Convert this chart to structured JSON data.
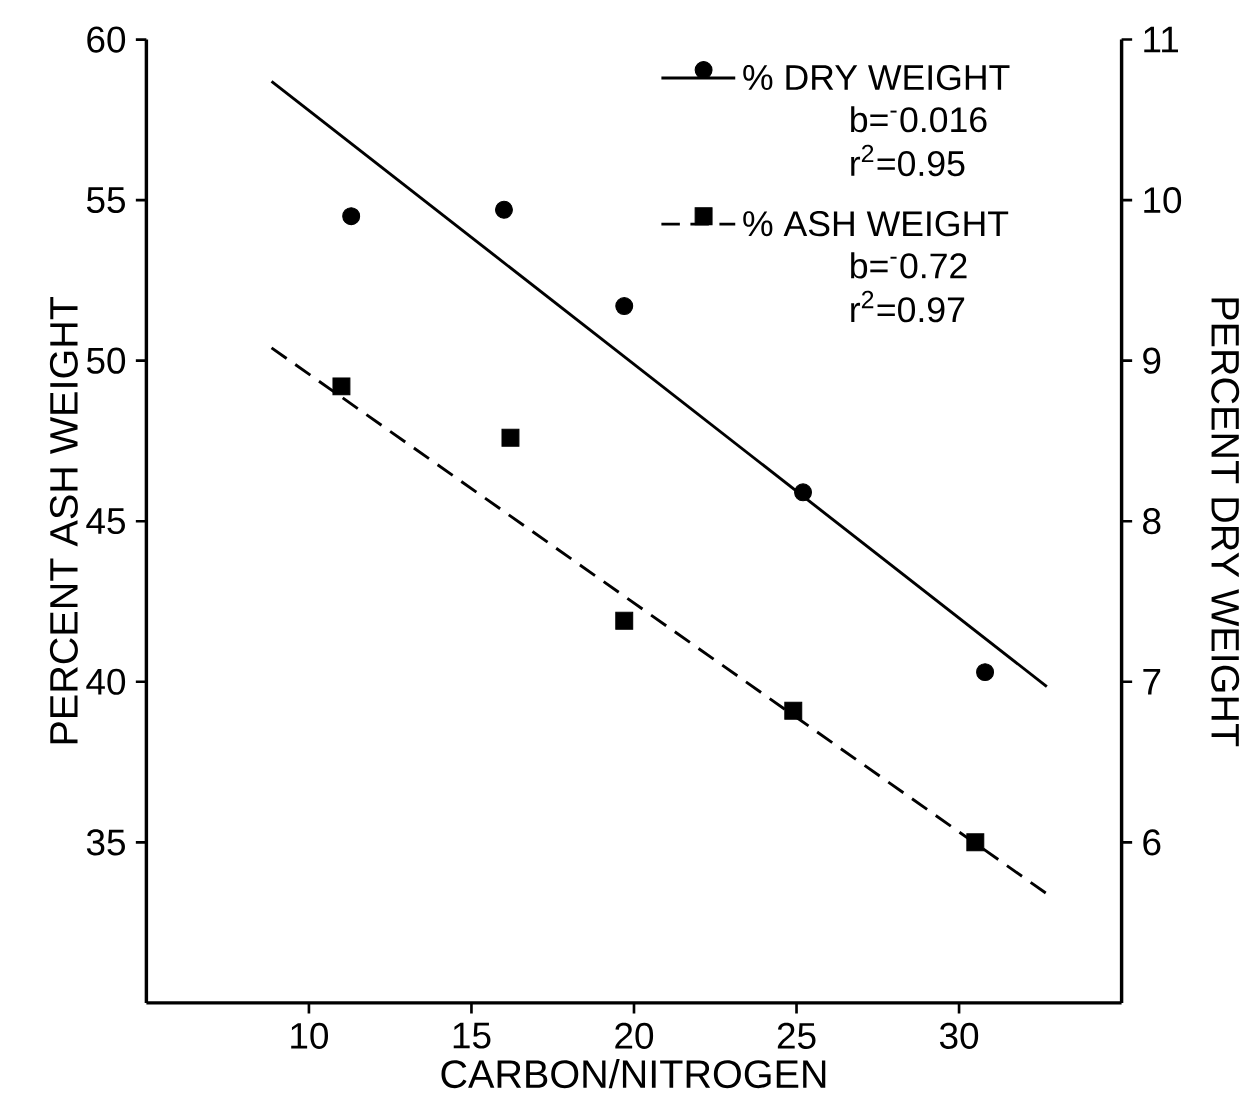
{
  "chart_data": {
    "type": "scatter",
    "xlabel": "CARBON/NITROGEN",
    "ylabel": "PERCENT ASH WEIGHT",
    "y2label": "PERCENT DRY WEIGHT",
    "xlim": [
      5,
      35
    ],
    "xticks": [
      10,
      15,
      20,
      25,
      30
    ],
    "ylim": [
      30,
      60
    ],
    "yticks": [
      35,
      40,
      45,
      50,
      55,
      60
    ],
    "y2lim": [
      5,
      11
    ],
    "y2ticks": [
      6,
      7,
      8,
      9,
      10,
      11
    ],
    "legend": "top right",
    "annotations": [
      "b=$^{-}$0.016",
      "r$^{2}$=0.95",
      "b=$^{-}$0.72",
      "r$^{2}$=0.97"
    ],
    "series": [
      {
        "name": "% DRY WEIGHT",
        "type": "scatter",
        "axis": "y2",
        "marker": "circle",
        "color": "#000000",
        "x": [
          11.3,
          16.0,
          19.7,
          25.2,
          30.8
        ],
        "values": [
          9.9,
          9.94,
          9.34,
          8.18,
          7.06
        ]
      },
      {
        "type": "line",
        "axis": "y2",
        "line_style": "solid",
        "marker": "none",
        "color": "#000000",
        "x": [
          8.85,
          32.7
        ],
        "values": [
          10.74,
          6.97
        ]
      },
      {
        "name": "% ASH WEIGHT",
        "type": "scatter",
        "marker": "square",
        "color": "#000000",
        "x": [
          11.0,
          16.2,
          19.7,
          24.9,
          30.5
        ],
        "values": [
          49.2,
          47.6,
          41.9,
          39.1,
          35.0
        ]
      },
      {
        "type": "line",
        "line_style": "dashed",
        "marker": "none",
        "color": "#000000",
        "x": [
          8.85,
          32.7
        ],
        "values": [
          50.4,
          33.4
        ]
      }
    ]
  }
}
